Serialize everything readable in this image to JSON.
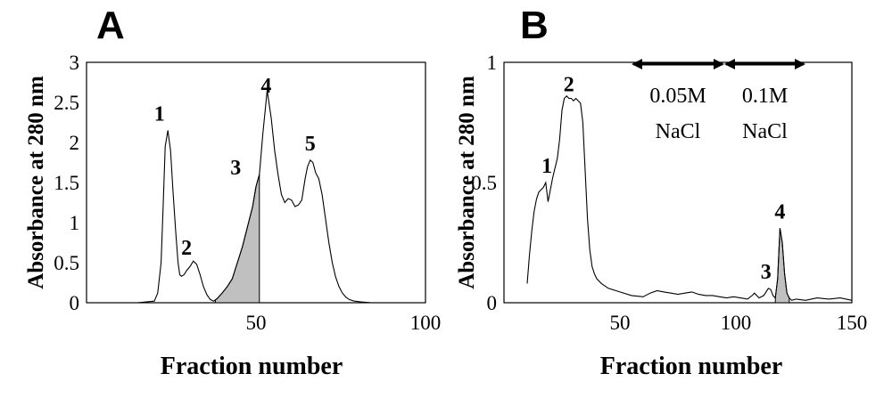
{
  "colors": {
    "line": "#000000",
    "shade": "#c0c0c0",
    "background": "#ffffff"
  },
  "chart_data": [
    {
      "panel": "A",
      "type": "line",
      "xlabel": "Fraction number",
      "ylabel": "Absorbance at 280 nm",
      "xlim": [
        0,
        100
      ],
      "ylim": [
        0,
        3
      ],
      "xticks": [
        0,
        50,
        100
      ],
      "yticks": [
        0,
        0.5,
        1,
        1.5,
        2,
        2.5,
        3
      ],
      "grid": false,
      "shaded_fraction_range": [
        38,
        51
      ],
      "x": [
        0,
        5,
        10,
        15,
        20,
        21,
        22,
        22.6,
        23.2,
        24,
        24.8,
        25.5,
        26.3,
        27,
        27.5,
        28,
        28.8,
        29.5,
        30.5,
        31.5,
        32.5,
        33.5,
        34.5,
        35.5,
        36.5,
        37.5,
        38.5,
        40,
        41.5,
        43,
        44.5,
        46,
        47.5,
        49,
        50,
        51,
        52,
        53.3,
        54.5,
        55.5,
        56.5,
        57.5,
        58.5,
        59.5,
        60.5,
        61.5,
        62.5,
        63.5,
        64.5,
        65.2,
        66,
        66.8,
        67.6,
        68.5,
        69.5,
        70.5,
        71.5,
        72.5,
        73.5,
        74.5,
        75.5,
        76.5,
        77.5,
        79,
        81,
        84,
        88,
        92,
        96,
        100
      ],
      "y": [
        0,
        0,
        0,
        0,
        0.02,
        0.12,
        0.5,
        1.2,
        1.95,
        2.15,
        1.9,
        1.4,
        0.9,
        0.5,
        0.35,
        0.33,
        0.35,
        0.4,
        0.45,
        0.52,
        0.48,
        0.35,
        0.2,
        0.1,
        0.04,
        0.02,
        0.05,
        0.12,
        0.2,
        0.3,
        0.5,
        0.7,
        0.95,
        1.2,
        1.45,
        1.6,
        2.1,
        2.65,
        2.3,
        1.9,
        1.6,
        1.35,
        1.25,
        1.3,
        1.28,
        1.2,
        1.22,
        1.28,
        1.55,
        1.7,
        1.78,
        1.75,
        1.62,
        1.55,
        1.35,
        1.05,
        0.75,
        0.5,
        0.32,
        0.2,
        0.12,
        0.07,
        0.04,
        0.02,
        0.01,
        0,
        0,
        0,
        0,
        0
      ],
      "peak_labels": [
        {
          "text": "1",
          "x": 21.5,
          "y": 2.27
        },
        {
          "text": "2",
          "x": 29.5,
          "y": 0.6
        },
        {
          "text": "3",
          "x": 44,
          "y": 1.6
        },
        {
          "text": "4",
          "x": 53,
          "y": 2.62
        },
        {
          "text": "5",
          "x": 66,
          "y": 1.9
        }
      ]
    },
    {
      "panel": "B",
      "type": "line",
      "xlabel": "Fraction number",
      "ylabel": "Absorbance at 280 nm",
      "xlim": [
        0,
        150
      ],
      "ylim": [
        0,
        1
      ],
      "xticks": [
        0,
        50,
        100,
        150
      ],
      "yticks": [
        0,
        0.5,
        1
      ],
      "grid": false,
      "shaded_fraction_range": [
        117,
        123
      ],
      "x": [
        10,
        11,
        12,
        13,
        14,
        15,
        16,
        17,
        18,
        19,
        20,
        21,
        22,
        23,
        24,
        25,
        26,
        27,
        28,
        29,
        30,
        31,
        32,
        33,
        34,
        35,
        36,
        37,
        38,
        39,
        40,
        42,
        45,
        50,
        55,
        60,
        63,
        66,
        69,
        72,
        75,
        78,
        81,
        84,
        87,
        90,
        93,
        96,
        99,
        102,
        105,
        107,
        108,
        110,
        112,
        113,
        114,
        115,
        116,
        117,
        118,
        119,
        120,
        121,
        122,
        123,
        124,
        126,
        130,
        135,
        140,
        145,
        150
      ],
      "y": [
        0.08,
        0.2,
        0.3,
        0.38,
        0.43,
        0.46,
        0.47,
        0.48,
        0.5,
        0.42,
        0.47,
        0.52,
        0.56,
        0.6,
        0.68,
        0.8,
        0.85,
        0.86,
        0.85,
        0.85,
        0.84,
        0.85,
        0.84,
        0.83,
        0.75,
        0.55,
        0.35,
        0.22,
        0.15,
        0.12,
        0.1,
        0.08,
        0.06,
        0.045,
        0.03,
        0.025,
        0.04,
        0.05,
        0.045,
        0.04,
        0.035,
        0.04,
        0.045,
        0.035,
        0.03,
        0.03,
        0.025,
        0.02,
        0.025,
        0.02,
        0.015,
        0.03,
        0.04,
        0.02,
        0.03,
        0.045,
        0.06,
        0.055,
        0.03,
        0.02,
        0.1,
        0.31,
        0.25,
        0.12,
        0.04,
        0.02,
        0.01,
        0.015,
        0.01,
        0.02,
        0.015,
        0.02,
        0.01
      ],
      "peak_labels": [
        {
          "text": "1",
          "x": 18.5,
          "y": 0.54
        },
        {
          "text": "2",
          "x": 28,
          "y": 0.88
        },
        {
          "text": "3",
          "x": 113,
          "y": 0.1
        },
        {
          "text": "4",
          "x": 119,
          "y": 0.35
        }
      ],
      "annotations": [
        {
          "x_range": [
            55,
            95
          ],
          "line1": "0.05M",
          "line2": "NaCl"
        },
        {
          "x_range": [
            95,
            130
          ],
          "line1": "0.1M",
          "line2": "NaCl"
        }
      ]
    }
  ]
}
